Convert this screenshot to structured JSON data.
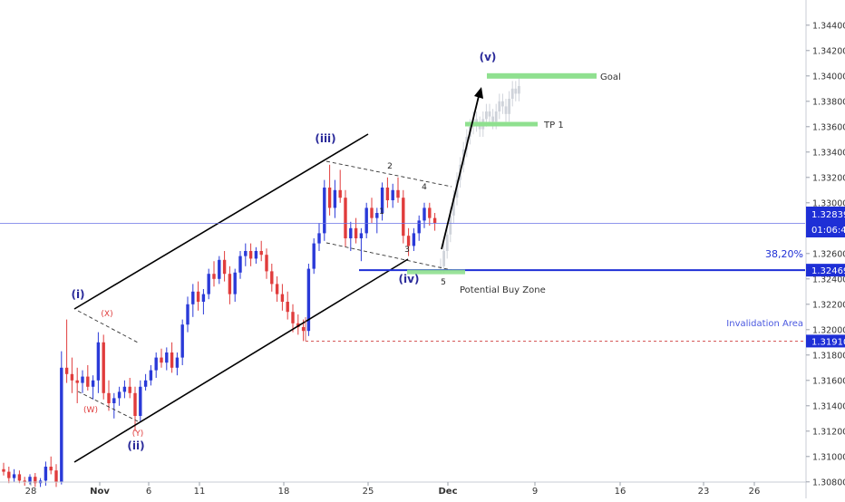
{
  "chart_data": {
    "type": "candlestick",
    "title": "",
    "xlabel": "",
    "ylabel": "",
    "ylim": [
      1.3072,
      1.3456
    ],
    "y_ticks": [
      "1.30800",
      "1.31000",
      "1.31200",
      "1.31400",
      "1.31600",
      "1.31800",
      "1.32000",
      "1.32200",
      "1.32400",
      "1.32600",
      "1.32800",
      "1.33000",
      "1.33200",
      "1.33400",
      "1.33600",
      "1.33800",
      "1.34000",
      "1.34200",
      "1.34400"
    ],
    "x_ticks": [
      "28",
      "Nov",
      "6",
      "11",
      "18",
      "25",
      "Dec",
      "9",
      "16",
      "23",
      "26"
    ],
    "colors": {
      "up": "#2a3ad8",
      "down": "#e03c3c",
      "ghost": "#cfd3da",
      "blue_line": "#1e2fd6",
      "green_zone": "#8fe08f",
      "invalidation": "#d04040",
      "wave_label": "#2a2a9a",
      "price_tag": "#1e2fd6"
    },
    "candles": [
      {
        "o": 1.309,
        "h": 1.3095,
        "l": 1.3085,
        "c": 1.3088
      },
      {
        "o": 1.3088,
        "h": 1.3092,
        "l": 1.3079,
        "c": 1.3083
      },
      {
        "o": 1.3083,
        "h": 1.309,
        "l": 1.308,
        "c": 1.3086
      },
      {
        "o": 1.3086,
        "h": 1.3089,
        "l": 1.3079,
        "c": 1.3081
      },
      {
        "o": 1.3081,
        "h": 1.3084,
        "l": 1.3077,
        "c": 1.308
      },
      {
        "o": 1.308,
        "h": 1.3086,
        "l": 1.3078,
        "c": 1.3084
      },
      {
        "o": 1.3084,
        "h": 1.3087,
        "l": 1.3076,
        "c": 1.3079
      },
      {
        "o": 1.3079,
        "h": 1.3083,
        "l": 1.3076,
        "c": 1.3081
      },
      {
        "o": 1.3081,
        "h": 1.3096,
        "l": 1.3077,
        "c": 1.3092
      },
      {
        "o": 1.3092,
        "h": 1.31,
        "l": 1.3086,
        "c": 1.3089
      },
      {
        "o": 1.3089,
        "h": 1.3094,
        "l": 1.3076,
        "c": 1.308
      },
      {
        "o": 1.308,
        "h": 1.3183,
        "l": 1.3078,
        "c": 1.317
      },
      {
        "o": 1.317,
        "h": 1.3208,
        "l": 1.3158,
        "c": 1.3165
      },
      {
        "o": 1.3165,
        "h": 1.3178,
        "l": 1.315,
        "c": 1.316
      },
      {
        "o": 1.316,
        "h": 1.317,
        "l": 1.3142,
        "c": 1.3158
      },
      {
        "o": 1.3158,
        "h": 1.3168,
        "l": 1.315,
        "c": 1.3163
      },
      {
        "o": 1.3163,
        "h": 1.3172,
        "l": 1.3152,
        "c": 1.3155
      },
      {
        "o": 1.3155,
        "h": 1.3164,
        "l": 1.3145,
        "c": 1.316
      },
      {
        "o": 1.316,
        "h": 1.3198,
        "l": 1.315,
        "c": 1.319
      },
      {
        "o": 1.319,
        "h": 1.3196,
        "l": 1.3145,
        "c": 1.315
      },
      {
        "o": 1.315,
        "h": 1.316,
        "l": 1.3136,
        "c": 1.3142
      },
      {
        "o": 1.3142,
        "h": 1.315,
        "l": 1.313,
        "c": 1.3146
      },
      {
        "o": 1.3146,
        "h": 1.3155,
        "l": 1.314,
        "c": 1.3151
      },
      {
        "o": 1.3151,
        "h": 1.316,
        "l": 1.3146,
        "c": 1.3155
      },
      {
        "o": 1.3155,
        "h": 1.3162,
        "l": 1.3146,
        "c": 1.315
      },
      {
        "o": 1.315,
        "h": 1.3155,
        "l": 1.312,
        "c": 1.3132
      },
      {
        "o": 1.3132,
        "h": 1.316,
        "l": 1.3128,
        "c": 1.3155
      },
      {
        "o": 1.3155,
        "h": 1.3165,
        "l": 1.3152,
        "c": 1.316
      },
      {
        "o": 1.316,
        "h": 1.3172,
        "l": 1.3156,
        "c": 1.3168
      },
      {
        "o": 1.3168,
        "h": 1.3182,
        "l": 1.3162,
        "c": 1.3178
      },
      {
        "o": 1.3178,
        "h": 1.3185,
        "l": 1.317,
        "c": 1.3174
      },
      {
        "o": 1.3174,
        "h": 1.3186,
        "l": 1.3168,
        "c": 1.3182
      },
      {
        "o": 1.3182,
        "h": 1.319,
        "l": 1.3166,
        "c": 1.317
      },
      {
        "o": 1.317,
        "h": 1.3182,
        "l": 1.3164,
        "c": 1.3178
      },
      {
        "o": 1.3178,
        "h": 1.3208,
        "l": 1.3172,
        "c": 1.3204
      },
      {
        "o": 1.3204,
        "h": 1.3226,
        "l": 1.3198,
        "c": 1.322
      },
      {
        "o": 1.322,
        "h": 1.3236,
        "l": 1.321,
        "c": 1.323
      },
      {
        "o": 1.323,
        "h": 1.3238,
        "l": 1.3215,
        "c": 1.3222
      },
      {
        "o": 1.3222,
        "h": 1.3232,
        "l": 1.3212,
        "c": 1.3228
      },
      {
        "o": 1.3228,
        "h": 1.3248,
        "l": 1.3224,
        "c": 1.3244
      },
      {
        "o": 1.3244,
        "h": 1.3254,
        "l": 1.3234,
        "c": 1.324
      },
      {
        "o": 1.324,
        "h": 1.3258,
        "l": 1.3236,
        "c": 1.3255
      },
      {
        "o": 1.3255,
        "h": 1.3262,
        "l": 1.3238,
        "c": 1.3244
      },
      {
        "o": 1.3244,
        "h": 1.325,
        "l": 1.322,
        "c": 1.3228
      },
      {
        "o": 1.3228,
        "h": 1.3248,
        "l": 1.3222,
        "c": 1.3245
      },
      {
        "o": 1.3245,
        "h": 1.3262,
        "l": 1.324,
        "c": 1.3258
      },
      {
        "o": 1.3258,
        "h": 1.3268,
        "l": 1.325,
        "c": 1.3262
      },
      {
        "o": 1.3262,
        "h": 1.3268,
        "l": 1.325,
        "c": 1.3256
      },
      {
        "o": 1.3256,
        "h": 1.3265,
        "l": 1.3252,
        "c": 1.3262
      },
      {
        "o": 1.3262,
        "h": 1.327,
        "l": 1.3254,
        "c": 1.3259
      },
      {
        "o": 1.3259,
        "h": 1.3264,
        "l": 1.324,
        "c": 1.3246
      },
      {
        "o": 1.3246,
        "h": 1.3252,
        "l": 1.323,
        "c": 1.3236
      },
      {
        "o": 1.3236,
        "h": 1.3242,
        "l": 1.3222,
        "c": 1.3228
      },
      {
        "o": 1.3228,
        "h": 1.3236,
        "l": 1.3215,
        "c": 1.3222
      },
      {
        "o": 1.3222,
        "h": 1.323,
        "l": 1.3208,
        "c": 1.3214
      },
      {
        "o": 1.3214,
        "h": 1.322,
        "l": 1.3198,
        "c": 1.3205
      },
      {
        "o": 1.3205,
        "h": 1.3212,
        "l": 1.3196,
        "c": 1.3202
      },
      {
        "o": 1.3202,
        "h": 1.3208,
        "l": 1.3191,
        "c": 1.3199
      },
      {
        "o": 1.3199,
        "h": 1.3252,
        "l": 1.3195,
        "c": 1.3248
      },
      {
        "o": 1.3248,
        "h": 1.3272,
        "l": 1.3244,
        "c": 1.3268
      },
      {
        "o": 1.3268,
        "h": 1.3284,
        "l": 1.3262,
        "c": 1.3276
      },
      {
        "o": 1.3276,
        "h": 1.3318,
        "l": 1.327,
        "c": 1.3312
      },
      {
        "o": 1.3312,
        "h": 1.333,
        "l": 1.329,
        "c": 1.3296
      },
      {
        "o": 1.3296,
        "h": 1.3318,
        "l": 1.3288,
        "c": 1.331
      },
      {
        "o": 1.331,
        "h": 1.3326,
        "l": 1.33,
        "c": 1.3304
      },
      {
        "o": 1.3304,
        "h": 1.331,
        "l": 1.3265,
        "c": 1.3272
      },
      {
        "o": 1.3272,
        "h": 1.3285,
        "l": 1.3262,
        "c": 1.328
      },
      {
        "o": 1.328,
        "h": 1.3288,
        "l": 1.3268,
        "c": 1.3272
      },
      {
        "o": 1.3272,
        "h": 1.328,
        "l": 1.3254,
        "c": 1.3276
      },
      {
        "o": 1.3276,
        "h": 1.33,
        "l": 1.3272,
        "c": 1.3296
      },
      {
        "o": 1.3296,
        "h": 1.3304,
        "l": 1.3284,
        "c": 1.3288
      },
      {
        "o": 1.3288,
        "h": 1.3296,
        "l": 1.3276,
        "c": 1.3292
      },
      {
        "o": 1.3292,
        "h": 1.3316,
        "l": 1.3286,
        "c": 1.3312
      },
      {
        "o": 1.3312,
        "h": 1.332,
        "l": 1.3296,
        "c": 1.3302
      },
      {
        "o": 1.3302,
        "h": 1.3315,
        "l": 1.3296,
        "c": 1.331
      },
      {
        "o": 1.331,
        "h": 1.332,
        "l": 1.33,
        "c": 1.3304
      },
      {
        "o": 1.3304,
        "h": 1.331,
        "l": 1.3268,
        "c": 1.3274
      },
      {
        "o": 1.3274,
        "h": 1.328,
        "l": 1.3258,
        "c": 1.3266
      },
      {
        "o": 1.3266,
        "h": 1.328,
        "l": 1.3262,
        "c": 1.3276
      },
      {
        "o": 1.3276,
        "h": 1.329,
        "l": 1.327,
        "c": 1.3286
      },
      {
        "o": 1.3286,
        "h": 1.33,
        "l": 1.328,
        "c": 1.3296
      },
      {
        "o": 1.3296,
        "h": 1.33,
        "l": 1.3282,
        "c": 1.3288
      },
      {
        "o": 1.3288,
        "h": 1.3292,
        "l": 1.3278,
        "c": 1.3284
      }
    ],
    "projection": [
      1.325,
      1.3262,
      1.3275,
      1.329,
      1.3304,
      1.3318,
      1.333,
      1.3342,
      1.3352,
      1.336,
      1.3366,
      1.3362,
      1.3358,
      1.3366,
      1.3372,
      1.3368,
      1.3364,
      1.3372,
      1.338,
      1.3376,
      1.337,
      1.3382,
      1.339,
      1.3386,
      1.3392
    ],
    "levels": {
      "current_price": 1.32839,
      "fib_level": 1.32469,
      "invalidation": 1.3191
    },
    "price_tags": {
      "current": "1.32839",
      "countdown": "01:06:45",
      "fib": "1.32469",
      "invalidation": "1.31910"
    },
    "annotations": {
      "fib_label": "38,20%",
      "invalidation_label": "Invalidation Area",
      "buy_zone_label": "Potential Buy Zone",
      "goal_label": "Goal",
      "tp1_label": "TP 1"
    },
    "wave_labels": [
      "(i)",
      "(ii)",
      "(iii)",
      "(iv)",
      "(v)",
      "(X)",
      "(W)",
      "(Y)",
      "1",
      "2",
      "3",
      "4",
      "5"
    ],
    "targets": {
      "goal": 1.34,
      "tp1": 1.3362
    },
    "grid": false,
    "legend": "none"
  }
}
